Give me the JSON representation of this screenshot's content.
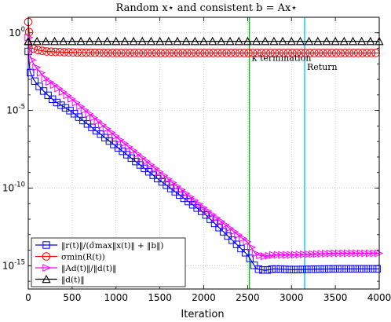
{
  "chart_data": {
    "type": "line",
    "title": "Random x⋆ and consistent b = Ax⋆",
    "xlabel": "Iteration",
    "ylabel": "",
    "xlim": [
      0,
      4000
    ],
    "ylim_log10": [
      -16.5,
      1
    ],
    "yscale": "log",
    "grid": true,
    "x_ticks": [
      0,
      500,
      1000,
      1500,
      2000,
      2500,
      3000,
      3500,
      4000
    ],
    "y_ticks": [
      {
        "exp": 0,
        "label": "10",
        "sup": "0"
      },
      {
        "exp": -5,
        "label": "10",
        "sup": "-5"
      },
      {
        "exp": -10,
        "label": "10",
        "sup": "-10"
      },
      {
        "exp": -15,
        "label": "10",
        "sup": "-15"
      }
    ],
    "legend_position": "bottom-left",
    "colors": {
      "residual": "#0000ff",
      "sigma": "#ff0000",
      "ad": "#ff00ff",
      "d": "#000000",
      "kappa_line": "#00cc00",
      "return_line": "#00ccff"
    },
    "series": [
      {
        "name": "‖r(t)‖/(σ̂max‖x(t)‖ + ‖b‖)",
        "key": "residual",
        "marker": "square",
        "x": [
          0,
          20,
          60,
          100,
          200,
          300,
          500,
          1000,
          1500,
          2000,
          2500,
          2600,
          2700,
          2800,
          3000,
          3500,
          4000
        ],
        "log10_y": [
          -1.2,
          -2.5,
          -3.0,
          -3.3,
          -3.9,
          -4.4,
          -5.1,
          -7.3,
          -9.5,
          -11.6,
          -14.3,
          -15.2,
          -15.3,
          -15.2,
          -15.25,
          -15.2,
          -15.2
        ]
      },
      {
        "name": "σmin(R(t))",
        "key": "sigma",
        "marker": "circle",
        "x": [
          0,
          20,
          50,
          100,
          200,
          400,
          600,
          1000,
          1500,
          2000,
          2500,
          3000,
          3500,
          4000
        ],
        "log10_y": [
          0.7,
          -0.6,
          -1.0,
          -1.1,
          -1.2,
          -1.25,
          -1.28,
          -1.3,
          -1.3,
          -1.3,
          -1.3,
          -1.3,
          -1.3,
          -1.3
        ],
        "annotation": "κ termination"
      },
      {
        "name": "‖Ad(t)‖/‖d(t)‖",
        "key": "ad",
        "marker": "triangle-right",
        "x": [
          0,
          20,
          60,
          100,
          200,
          300,
          500,
          1000,
          1500,
          2000,
          2500,
          2600,
          2700,
          2800,
          3000,
          3500,
          4000
        ],
        "log10_y": [
          -0.3,
          -1.5,
          -2.0,
          -2.3,
          -3.0,
          -3.4,
          -4.3,
          -6.7,
          -9.0,
          -11.3,
          -13.5,
          -14.3,
          -14.4,
          -14.3,
          -14.3,
          -14.2,
          -14.2
        ]
      },
      {
        "name": "‖d(t)‖",
        "key": "d",
        "marker": "triangle-up",
        "x": [
          0,
          500,
          1000,
          1500,
          2000,
          2500,
          3000,
          3500,
          4000
        ],
        "log10_y": [
          -0.55,
          -0.55,
          -0.55,
          -0.55,
          -0.55,
          -0.55,
          -0.55,
          -0.55,
          -0.55
        ]
      }
    ],
    "vlines": [
      {
        "key": "kappa_line",
        "x": 2520,
        "label": "κ termination"
      },
      {
        "key": "return_line",
        "x": 3150,
        "label": "Return"
      }
    ]
  }
}
